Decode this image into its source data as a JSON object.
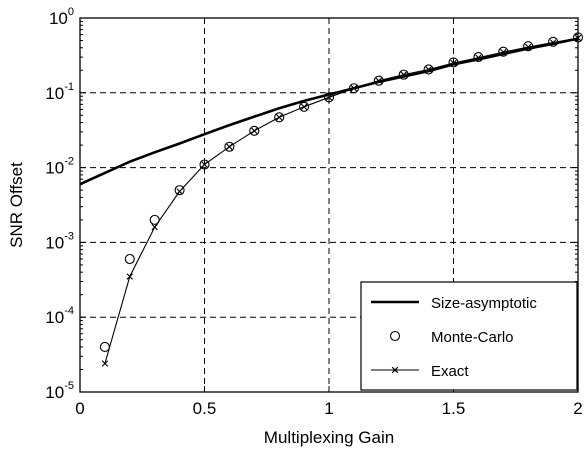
{
  "chart_data": {
    "type": "line",
    "xlabel": "Multiplexing Gain",
    "ylabel": "SNR Offset",
    "xlim": [
      0,
      2
    ],
    "ylim": [
      1e-05,
      1
    ],
    "yscale": "log",
    "grid": true,
    "legend_position": "bottom-right",
    "x_ticks": [
      "0",
      "0.5",
      "1",
      "1.5",
      "2"
    ],
    "y_ticks": [
      {
        "base": "10",
        "exp": "-5"
      },
      {
        "base": "10",
        "exp": "-4"
      },
      {
        "base": "10",
        "exp": "-3"
      },
      {
        "base": "10",
        "exp": "-2"
      },
      {
        "base": "10",
        "exp": "-1"
      },
      {
        "base": "10",
        "exp": "0"
      }
    ],
    "series": [
      {
        "name": "Size-asymptotic",
        "style": "thick-line",
        "color": "#000000",
        "x": [
          0,
          0.1,
          0.2,
          0.3,
          0.4,
          0.5,
          0.6,
          0.7,
          0.8,
          0.9,
          1.0,
          1.1,
          1.2,
          1.3,
          1.4,
          1.5,
          1.6,
          1.7,
          1.8,
          1.9,
          2.0
        ],
        "y": [
          0.006,
          0.0085,
          0.012,
          0.016,
          0.021,
          0.028,
          0.037,
          0.048,
          0.062,
          0.078,
          0.095,
          0.115,
          0.14,
          0.165,
          0.195,
          0.24,
          0.28,
          0.33,
          0.39,
          0.45,
          0.53
        ]
      },
      {
        "name": "Monte-Carlo",
        "style": "circle-markers",
        "color": "#000000",
        "x": [
          0.1,
          0.2,
          0.3,
          0.4,
          0.5,
          0.6,
          0.7,
          0.8,
          0.9,
          1.0,
          1.1,
          1.2,
          1.3,
          1.4,
          1.5,
          1.6,
          1.7,
          1.8,
          1.9,
          2.0
        ],
        "y": [
          4e-05,
          0.0006,
          0.002,
          0.005,
          0.011,
          0.019,
          0.031,
          0.047,
          0.065,
          0.087,
          0.115,
          0.145,
          0.175,
          0.205,
          0.255,
          0.3,
          0.355,
          0.42,
          0.48,
          0.55
        ]
      },
      {
        "name": "Exact",
        "style": "thin-line-x-markers",
        "color": "#000000",
        "x": [
          0.1,
          0.2,
          0.3,
          0.4,
          0.5,
          0.6,
          0.7,
          0.8,
          0.9,
          1.0,
          1.1,
          1.2,
          1.3,
          1.4,
          1.5,
          1.6,
          1.7,
          1.8,
          1.9,
          2.0
        ],
        "y": [
          2.4e-05,
          0.00035,
          0.0016,
          0.0048,
          0.011,
          0.019,
          0.031,
          0.047,
          0.065,
          0.087,
          0.115,
          0.145,
          0.175,
          0.205,
          0.25,
          0.295,
          0.35,
          0.41,
          0.47,
          0.54
        ]
      }
    ]
  }
}
